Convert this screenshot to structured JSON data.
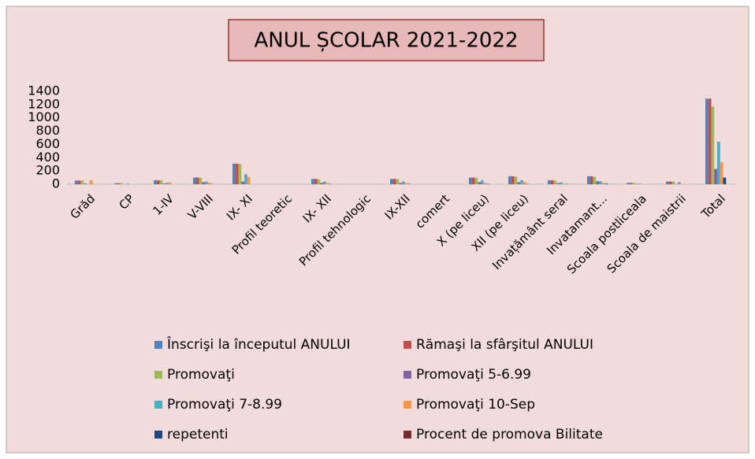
{
  "chart_data": {
    "type": "bar",
    "title": "ANUL ȘCOLAR 2021-2022",
    "categories": [
      "Grăd",
      "CP",
      "1-IV",
      "V-VIII",
      "IX- XI",
      "Profil teoretic",
      "IX- XII",
      "Profil tehnologic",
      "IX-XII",
      "comert",
      "X (pe liceu)",
      "XII (pe liceu)",
      "Invațământ seral",
      "Invatamant...",
      "Scoala postliceala",
      "Scoala de maistrii",
      "Total"
    ],
    "series": [
      {
        "name": "Înscrişi la începutul ANULUI",
        "color": "#4f81bd",
        "values": [
          55,
          15,
          60,
          100,
          310,
          null,
          80,
          null,
          80,
          null,
          100,
          120,
          60,
          120,
          20,
          40,
          1290
        ]
      },
      {
        "name": "Rămaşi la sfârşitul ANULUI",
        "color": "#c0504d",
        "values": [
          55,
          15,
          60,
          100,
          310,
          null,
          80,
          null,
          80,
          null,
          100,
          120,
          60,
          120,
          20,
          40,
          1290
        ]
      },
      {
        "name": "Promovaţi",
        "color": "#9bbb59",
        "values": [
          55,
          15,
          60,
          95,
          305,
          null,
          75,
          null,
          75,
          null,
          95,
          115,
          55,
          110,
          20,
          40,
          1170
        ]
      },
      {
        "name": "Promovaţi 5-6.99",
        "color": "#8064a2",
        "values": [
          10,
          0,
          10,
          30,
          40,
          null,
          20,
          null,
          20,
          null,
          30,
          30,
          15,
          45,
          5,
          5,
          230
        ]
      },
      {
        "name": "Promovaţi 7-8.99",
        "color": "#4bacc6",
        "values": [
          5,
          10,
          20,
          40,
          150,
          null,
          40,
          null,
          40,
          null,
          60,
          60,
          30,
          45,
          10,
          30,
          640
        ]
      },
      {
        "name": "Promovaţi 10-Sep",
        "color": "#f79646",
        "values": [
          60,
          0,
          30,
          25,
          110,
          null,
          20,
          null,
          20,
          null,
          20,
          35,
          10,
          20,
          5,
          5,
          330
        ]
      },
      {
        "name": "repetenti",
        "color": "#1f497d",
        "values": [
          0,
          0,
          0,
          5,
          0,
          null,
          5,
          null,
          5,
          null,
          5,
          5,
          5,
          10,
          0,
          0,
          100
        ]
      },
      {
        "name": "Procent de promova Bilitate",
        "color": "#772c2a",
        "values": [
          0,
          0,
          0,
          0,
          0,
          null,
          0,
          null,
          0,
          null,
          0,
          0,
          0,
          0,
          0,
          0,
          0
        ]
      }
    ],
    "ylim": [
      0,
      1400
    ],
    "yticks": [
      0,
      200,
      400,
      600,
      800,
      1000,
      1200,
      1400
    ],
    "grid": false,
    "legend": "bottom"
  }
}
